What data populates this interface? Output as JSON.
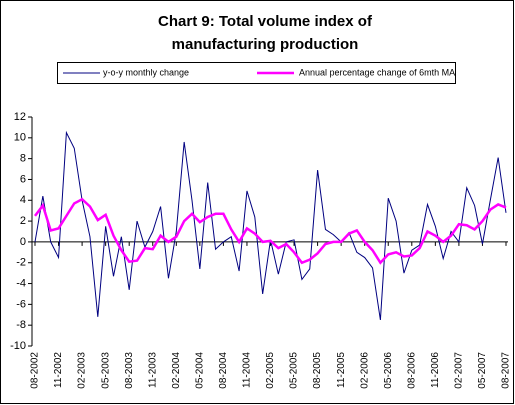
{
  "chart_data": {
    "type": "line",
    "title": [
      "Chart 9: Total volume index of",
      "manufacturing production"
    ],
    "categories": [
      "08-2002",
      null,
      null,
      "11-2002",
      null,
      null,
      "02-2003",
      null,
      null,
      "05-2003",
      null,
      null,
      "08-2003",
      null,
      null,
      "11-2003",
      null,
      null,
      "02-2004",
      null,
      null,
      "05-2004",
      null,
      null,
      "08-2004",
      null,
      null,
      "11-2004",
      null,
      null,
      "02-2005",
      null,
      null,
      "05-2005",
      null,
      null,
      "08-2005",
      null,
      null,
      "11-2005",
      null,
      null,
      "02-2006",
      null,
      null,
      "05-2006",
      null,
      null,
      "08-2006",
      null,
      null,
      "11-2006",
      null,
      null,
      "02-2007",
      null,
      null,
      "05-2007",
      null,
      null,
      "08-2007"
    ],
    "series": [
      {
        "name": "y-o-y monthly change",
        "color": "#000080",
        "values": [
          0,
          4.4,
          0,
          -1.5,
          10.5,
          9,
          4,
          0.5,
          -7.2,
          1.5,
          -3.3,
          0.5,
          -4.6,
          2,
          -0.5,
          1,
          3.4,
          -3.5,
          1,
          9.6,
          4,
          -2.6,
          5.7,
          -0.7,
          0,
          0.5,
          -2.8,
          4.9,
          2.4,
          -5,
          0.2,
          -3.1,
          0,
          0.2,
          -3.6,
          -2.6,
          6.9,
          1.2,
          0.7,
          0,
          0.9,
          -1,
          -1.5,
          -2.5,
          -7.5,
          4.2,
          2,
          -3,
          -0.8,
          -0.3,
          3.6,
          1.5,
          -1.6,
          1,
          0,
          5.2,
          3.5,
          -0.2,
          4,
          8.1,
          2.8
        ]
      },
      {
        "name": "Annual percentage change of 6mth MA",
        "color": "#ff00ff",
        "values": [
          2.5,
          3.5,
          1.1,
          1.3,
          2.5,
          3.7,
          4.1,
          3.4,
          2.1,
          2.6,
          0.6,
          -0.8,
          -1.9,
          -1.8,
          -0.6,
          -0.7,
          0.6,
          0,
          0.5,
          2,
          2.7,
          1.9,
          2.4,
          2.7,
          2.7,
          1.2,
          0,
          1.3,
          0.8,
          0,
          0.1,
          -0.6,
          -0.2,
          -1,
          -2,
          -1.7,
          -1.1,
          -0.2,
          0,
          0,
          0.8,
          1.1,
          0,
          -0.8,
          -2,
          -1.2,
          -1,
          -1.4,
          -1.3,
          -0.6,
          1,
          0.6,
          0,
          0.6,
          1.7,
          1.6,
          1.2,
          2,
          3.1,
          3.6,
          3.3
        ]
      }
    ],
    "ylim": [
      -10,
      12
    ],
    "yticks": [
      -10,
      -8,
      -6,
      -4,
      -2,
      0,
      2,
      4,
      6,
      8,
      10,
      12
    ],
    "grid": false,
    "legend": "top"
  }
}
